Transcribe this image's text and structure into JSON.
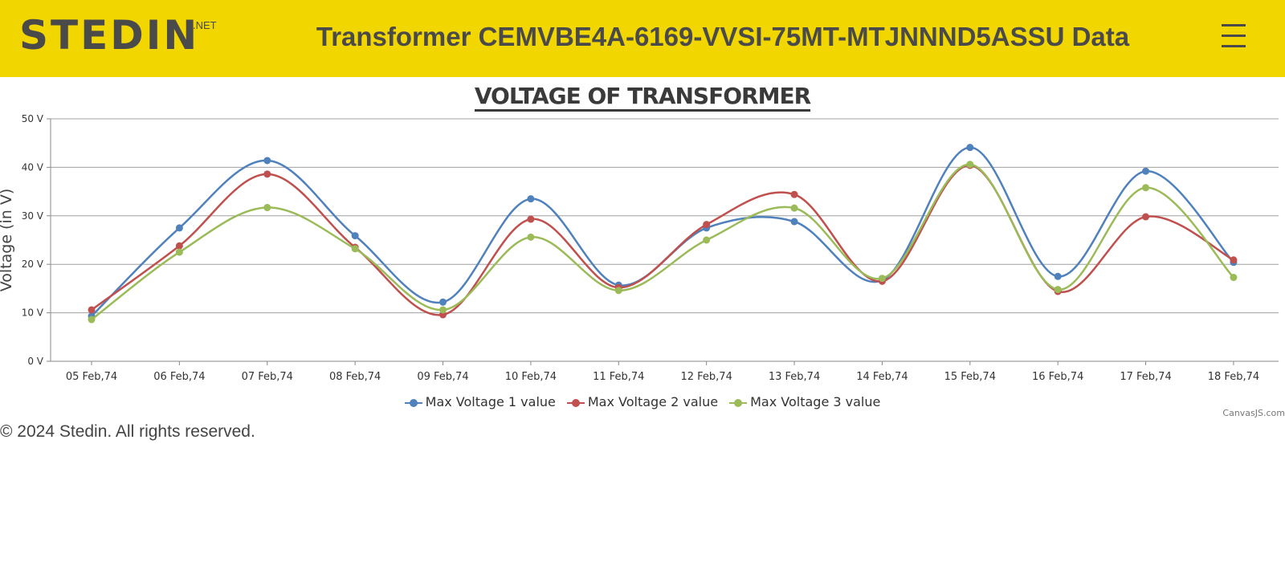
{
  "header": {
    "logo_text": "STEDIN",
    "logo_superscript": ".NET",
    "title": "Transformer CEMVBE4A-6169-VVSI-75MT-MTJNNND5ASSU Data",
    "menu_icon": "hamburger-menu-icon",
    "background_color": "#f2d600"
  },
  "chart_data": {
    "type": "line",
    "title": "VOLTAGE OF TRANSFORMER",
    "xlabel": "",
    "ylabel": "Voltage (in V)",
    "ylim": [
      0,
      50
    ],
    "ytick_step": 10,
    "ytick_suffix": " V",
    "grid": true,
    "legend_position": "bottom",
    "smooth": true,
    "categories": [
      "05 Feb,74",
      "06 Feb,74",
      "07 Feb,74",
      "08 Feb,74",
      "09 Feb,74",
      "10 Feb,74",
      "11 Feb,74",
      "12 Feb,74",
      "13 Feb,74",
      "14 Feb,74",
      "15 Feb,74",
      "16 Feb,74",
      "17 Feb,74",
      "18 Feb,74"
    ],
    "series": [
      {
        "name": "Max Voltage 1 value",
        "color": "#4f81bc",
        "values": [
          9.3,
          27.5,
          41.4,
          25.9,
          12.2,
          33.5,
          15.7,
          27.5,
          28.8,
          16.7,
          44.1,
          17.5,
          39.2,
          20.4
        ]
      },
      {
        "name": "Max Voltage 2 value",
        "color": "#c0504e",
        "values": [
          10.6,
          23.8,
          38.6,
          23.5,
          9.6,
          29.3,
          15.2,
          28.2,
          34.4,
          16.5,
          40.4,
          14.4,
          29.8,
          20.9
        ]
      },
      {
        "name": "Max Voltage 3 value",
        "color": "#9bbb58",
        "values": [
          8.6,
          22.5,
          31.7,
          23.2,
          10.6,
          25.6,
          14.6,
          25.0,
          31.6,
          17.1,
          40.6,
          14.8,
          35.8,
          17.3
        ]
      }
    ]
  },
  "credit": "CanvasJS.com",
  "footer": {
    "copyright": "© 2024 Stedin. All rights reserved."
  }
}
